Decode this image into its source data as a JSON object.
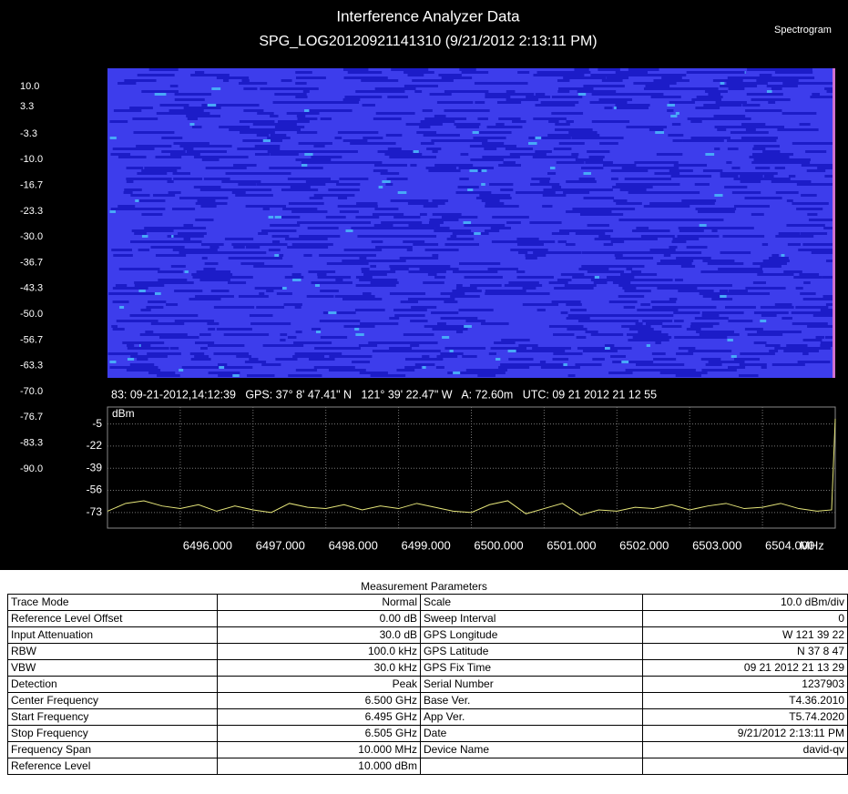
{
  "header": {
    "title": "Interference Analyzer Data",
    "subtitle": "SPG_LOG20120921141310 (9/21/2012 2:13:11 PM)",
    "mode": "Spectrogram"
  },
  "spectrogram": {
    "scale_labels": [
      "10.0",
      "3.3",
      "-3.3",
      "-10.0",
      "-16.7",
      "-23.3",
      "-30.0",
      "-36.7",
      "-43.3",
      "-50.0",
      "-56.7",
      "-63.3",
      "-70.0",
      "-76.7",
      "-83.3",
      "-90.0"
    ],
    "status_line": "83: 09-21-2012,14:12:39   GPS: 37° 8' 47.41\" N   121° 39' 22.47\" W   A: 72.60m   UTC: 09 21 2012 21 12 55"
  },
  "chart_data": {
    "type": "line",
    "y_label": "dBm",
    "x_unit": "MHz",
    "color": "#e6e67a",
    "grid": true,
    "xlim": [
      6495,
      6505
    ],
    "ylim": [
      -85,
      8
    ],
    "xticks": [
      {
        "value": 6496,
        "label": "6496.000"
      },
      {
        "value": 6497,
        "label": "6497.000"
      },
      {
        "value": 6498,
        "label": "6498.000"
      },
      {
        "value": 6499,
        "label": "6499.000"
      },
      {
        "value": 6500,
        "label": "6500.000"
      },
      {
        "value": 6501,
        "label": "6501.000"
      },
      {
        "value": 6502,
        "label": "6502.000"
      },
      {
        "value": 6503,
        "label": "6503.000"
      },
      {
        "value": 6504,
        "label": "6504.000"
      }
    ],
    "yticks": [
      -5,
      -22,
      -39,
      -56,
      -73
    ],
    "x": [
      6495,
      6495.25,
      6495.5,
      6495.75,
      6496,
      6496.25,
      6496.5,
      6496.75,
      6497,
      6497.25,
      6497.5,
      6497.75,
      6498,
      6498.25,
      6498.5,
      6498.75,
      6499,
      6499.25,
      6499.5,
      6499.75,
      6500,
      6500.25,
      6500.5,
      6500.75,
      6501,
      6501.25,
      6501.5,
      6501.75,
      6502,
      6502.25,
      6502.5,
      6502.75,
      6503,
      6503.25,
      6503.5,
      6503.75,
      6504,
      6504.25,
      6504.5,
      6504.75,
      6504.95,
      6505
    ],
    "values": [
      -72,
      -66,
      -64,
      -68,
      -70,
      -67,
      -72,
      -68,
      -71,
      -73,
      -66,
      -69,
      -70,
      -67,
      -71,
      -68,
      -70,
      -66,
      -69,
      -72,
      -73,
      -67,
      -64,
      -74,
      -70,
      -66,
      -75,
      -71,
      -72,
      -69,
      -70,
      -67,
      -71,
      -68,
      -66,
      -70,
      -69,
      -66,
      -70,
      -72,
      -71,
      -1
    ]
  },
  "table": {
    "title": "Measurement Parameters",
    "rows": [
      [
        "Trace Mode",
        "Normal",
        "Scale",
        "10.0  dBm/div"
      ],
      [
        "Reference Level Offset",
        "0.00 dB",
        "Sweep Interval",
        "0"
      ],
      [
        "Input Attenuation",
        "30.0 dB",
        "GPS Longitude",
        "W 121 39 22"
      ],
      [
        "RBW",
        "100.0 kHz",
        "GPS Latitude",
        "N 37 8 47"
      ],
      [
        "VBW",
        "30.0 kHz",
        "GPS Fix Time",
        "09 21 2012 21 13 29"
      ],
      [
        "Detection",
        "Peak",
        "Serial Number",
        "1237903"
      ],
      [
        "Center Frequency",
        "6.500 GHz",
        "Base Ver.",
        "T4.36.2010"
      ],
      [
        "Start Frequency",
        "6.495 GHz",
        "App Ver.",
        "T5.74.2020"
      ],
      [
        "Stop Frequency",
        "6.505 GHz",
        "Date",
        "9/21/2012 2:13:11 PM"
      ],
      [
        "Frequency Span",
        "10.000 MHz",
        "Device Name",
        "david-qv"
      ],
      [
        "Reference Level",
        "10.000  dBm"
      ]
    ]
  }
}
